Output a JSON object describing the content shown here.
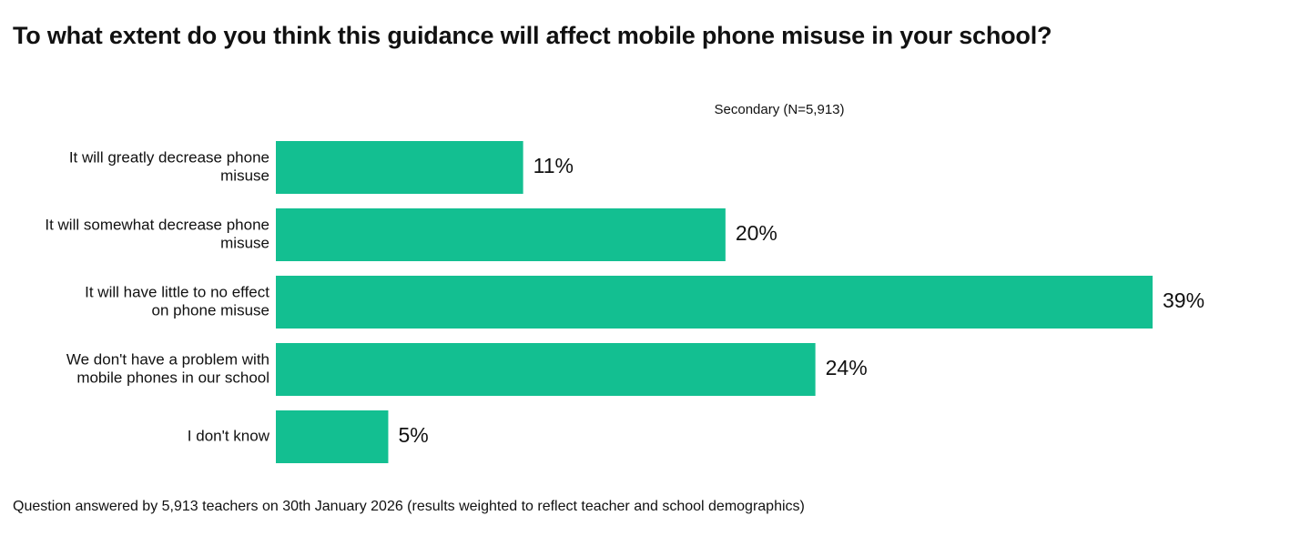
{
  "title": "To what extent do you think this guidance will affect mobile phone misuse in your school?",
  "series_label": "Secondary (N=5,913)",
  "footnote": "Question answered by 5,913 teachers on 30th January 2026 (results weighted to reflect teacher and school demographics)",
  "colors": {
    "bar": "#13BF91",
    "text": "#111111"
  },
  "chart_data": {
    "type": "bar",
    "orientation": "horizontal",
    "title": "To what extent do you think this guidance will affect mobile phone misuse in your school?",
    "categories": [
      [
        "It will greatly decrease phone",
        "misuse"
      ],
      [
        "It will somewhat decrease phone",
        "misuse"
      ],
      [
        "It will have little to no effect",
        "on phone misuse"
      ],
      [
        "We don't have a problem with",
        "mobile phones in our school"
      ],
      [
        "I don't know"
      ]
    ],
    "series": [
      {
        "name": "Secondary (N=5,913)",
        "values": [
          11,
          20,
          39,
          24,
          5
        ],
        "labels": [
          "11%",
          "20%",
          "39%",
          "24%",
          "5%"
        ]
      }
    ],
    "xlim": [
      0,
      39
    ],
    "unit": "%",
    "grid": false,
    "legend": "top-center"
  }
}
